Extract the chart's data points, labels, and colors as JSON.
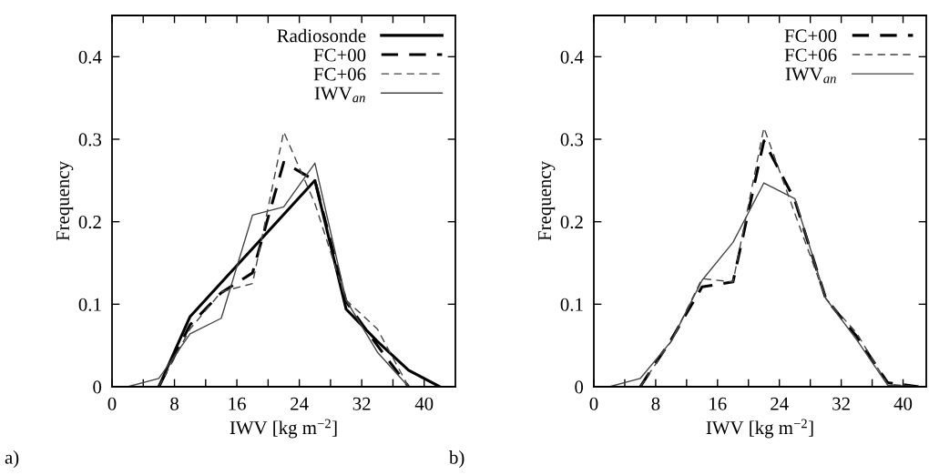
{
  "chart_data": [
    {
      "type": "line",
      "xlabel": "IWV [kg m$^{−2}$]",
      "ylabel": "Frequency",
      "xlim": [
        0,
        44
      ],
      "ylim": [
        0,
        0.45
      ],
      "xticks": [
        0,
        {
          "value": 4,
          "label": null
        },
        8,
        {
          "value": 12,
          "label": null
        },
        16,
        {
          "value": 20,
          "label": null
        },
        24,
        {
          "value": 28,
          "label": null
        },
        32,
        {
          "value": 36,
          "label": null
        },
        40
      ],
      "yticks": [
        0,
        0.1,
        0.2,
        0.3,
        0.4
      ],
      "legend": "top right",
      "grid": false,
      "annotations": [
        "a)"
      ],
      "series": [
        {
          "name": "Radiosonde",
          "color": "#000000",
          "line_style": "solid",
          "x": [
            6,
            10,
            26,
            30,
            34,
            38,
            42
          ],
          "values": [
            0,
            0.085,
            0.25,
            0.094,
            0.055,
            0.02,
            0
          ]
        },
        {
          "name": "FC+00",
          "color": "#000000",
          "line_style": "dashed",
          "x": [
            6,
            10,
            14,
            18,
            22,
            26,
            30,
            34,
            38
          ],
          "values": [
            0,
            0.075,
            0.114,
            0.138,
            0.272,
            0.25,
            0.103,
            0.05,
            0
          ]
        },
        {
          "name": "FC+06",
          "color": "#444444",
          "line_style": "dashed",
          "x": [
            6,
            10,
            14,
            18,
            22,
            26,
            30,
            34,
            38
          ],
          "values": [
            0,
            0.07,
            0.115,
            0.125,
            0.309,
            0.222,
            0.105,
            0.07,
            0
          ]
        },
        {
          "name": "IWV$_{an}$",
          "color": "#444444",
          "line_style": "solid",
          "x": [
            2,
            6,
            10,
            14,
            18,
            22,
            26,
            30,
            34,
            38
          ],
          "values": [
            0,
            0.01,
            0.064,
            0.083,
            0.208,
            0.218,
            0.271,
            0.105,
            0.042,
            0
          ]
        }
      ]
    },
    {
      "type": "line",
      "xlabel": "IWV [kg m$^{−2}$]",
      "ylabel": "Frequency",
      "xlim": [
        0,
        43
      ],
      "ylim": [
        0,
        0.45
      ],
      "xticks": [
        0,
        {
          "value": 4,
          "label": null
        },
        8,
        {
          "value": 12,
          "label": null
        },
        16,
        {
          "value": 20,
          "label": null
        },
        24,
        {
          "value": 28,
          "label": null
        },
        32,
        {
          "value": 36,
          "label": null
        },
        40
      ],
      "yticks": [
        0,
        0.1,
        0.2,
        0.3,
        0.4
      ],
      "legend": "top right",
      "grid": false,
      "annotations": [
        "b)"
      ],
      "series": [
        {
          "name": "FC+00",
          "color": "#000000",
          "line_style": "dashed",
          "x": [
            6,
            10,
            14,
            18,
            22,
            26,
            30,
            34,
            38,
            42
          ],
          "values": [
            0,
            0.057,
            0.121,
            0.127,
            0.298,
            0.226,
            0.107,
            0.061,
            0.005,
            0
          ]
        },
        {
          "name": "FC+06",
          "color": "#444444",
          "line_style": "dashed",
          "x": [
            6,
            10,
            14,
            18,
            22,
            26,
            30,
            34,
            38,
            42
          ],
          "values": [
            0,
            0.055,
            0.131,
            0.127,
            0.314,
            0.21,
            0.107,
            0.065,
            0.003,
            0
          ]
        },
        {
          "name": "IWV$_{an}$",
          "color": "#444444",
          "line_style": "solid",
          "x": [
            2,
            6,
            10,
            14,
            18,
            22,
            26,
            30,
            34,
            38,
            42
          ],
          "values": [
            0,
            0.01,
            0.055,
            0.129,
            0.175,
            0.247,
            0.228,
            0.107,
            0.057,
            0.002,
            0
          ]
        }
      ]
    }
  ]
}
